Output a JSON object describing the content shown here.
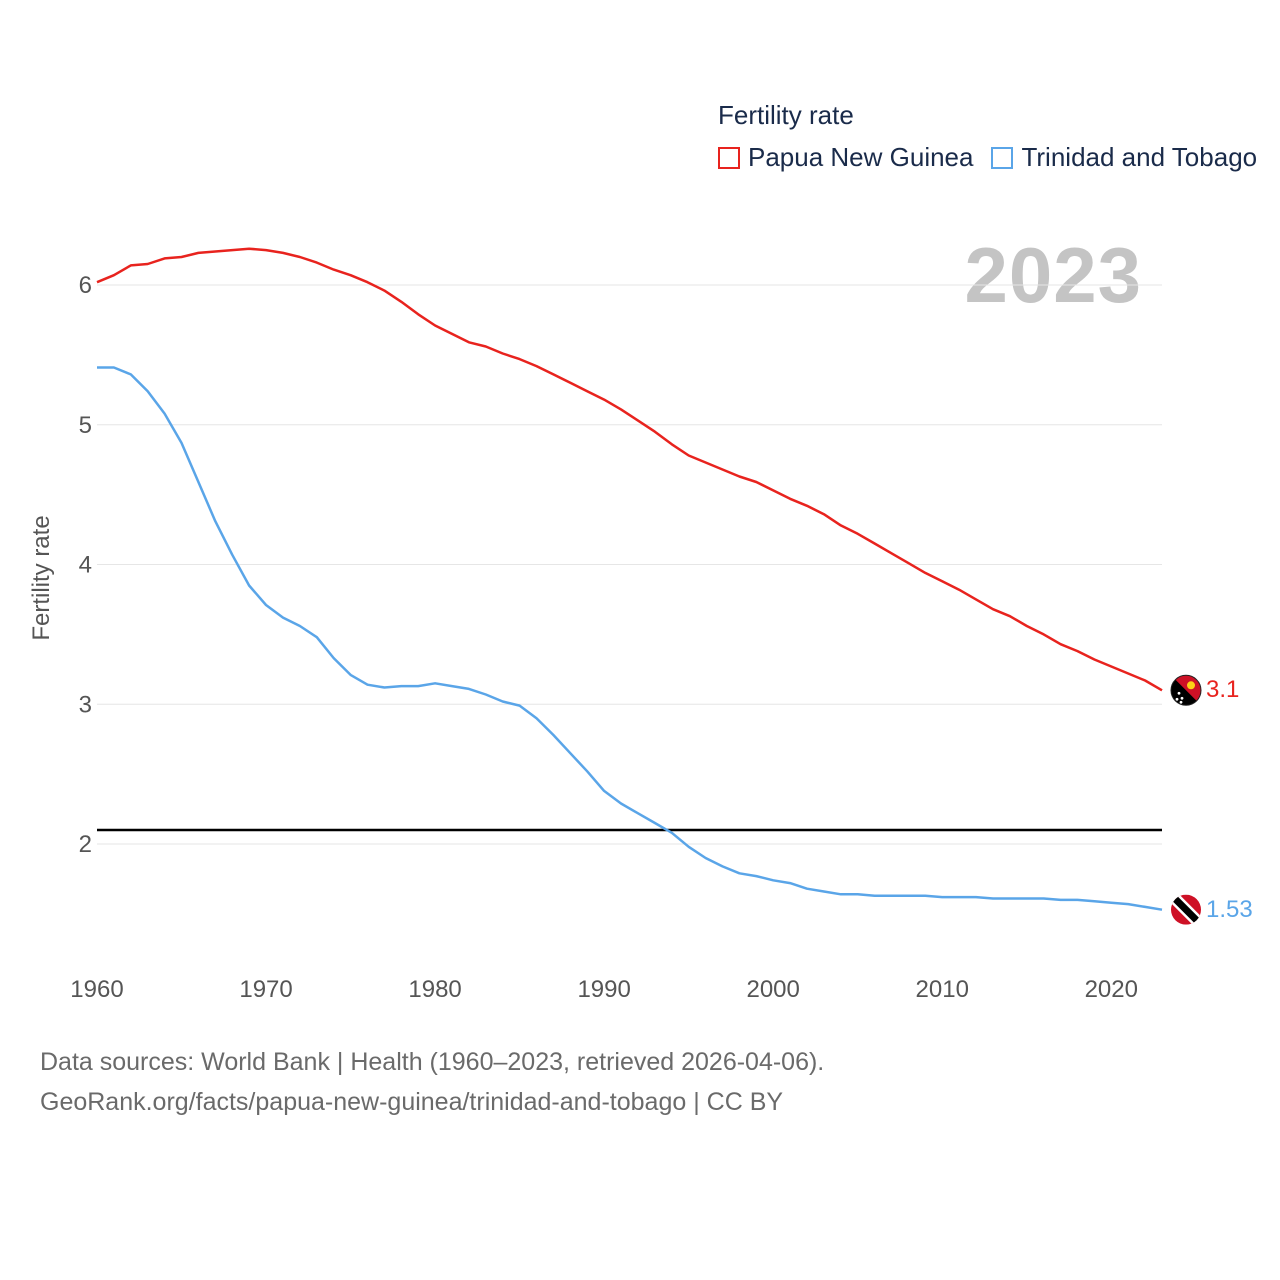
{
  "legend": {
    "title": "Fertility rate",
    "items": [
      {
        "label": "Papua New Guinea",
        "color": "#e8231e"
      },
      {
        "label": "Trinidad and Tobago",
        "color": "#5aa5e8"
      }
    ]
  },
  "year_label": "2023",
  "footer": {
    "line1": "Data sources: World Bank | Health (1960–2023, retrieved 2026-04-06).",
    "line2": "GeoRank.org/facts/papua-new-guinea/trinidad-and-tobago | CC BY"
  },
  "chart_data": {
    "type": "line",
    "title": "Fertility rate",
    "xlabel": "",
    "ylabel": "Fertility rate",
    "xlim": [
      1960,
      2023
    ],
    "ylim": [
      1.2,
      6.7
    ],
    "x_ticks": [
      1960,
      1970,
      1980,
      1990,
      2000,
      2010,
      2020
    ],
    "y_ticks": [
      2,
      3,
      4,
      5,
      6
    ],
    "grid": true,
    "reference_line": {
      "y": 2.1,
      "color": "#000000"
    },
    "x": [
      1960,
      1961,
      1962,
      1963,
      1964,
      1965,
      1966,
      1967,
      1968,
      1969,
      1970,
      1971,
      1972,
      1973,
      1974,
      1975,
      1976,
      1977,
      1978,
      1979,
      1980,
      1981,
      1982,
      1983,
      1984,
      1985,
      1986,
      1987,
      1988,
      1989,
      1990,
      1991,
      1992,
      1993,
      1994,
      1995,
      1996,
      1997,
      1998,
      1999,
      2000,
      2001,
      2002,
      2003,
      2004,
      2005,
      2006,
      2007,
      2008,
      2009,
      2010,
      2011,
      2012,
      2013,
      2014,
      2015,
      2016,
      2017,
      2018,
      2019,
      2020,
      2021,
      2022,
      2023
    ],
    "series": [
      {
        "name": "Papua New Guinea",
        "color": "#e8231e",
        "end_label": "3.1",
        "values": [
          6.02,
          6.07,
          6.14,
          6.15,
          6.19,
          6.2,
          6.23,
          6.24,
          6.25,
          6.26,
          6.25,
          6.23,
          6.2,
          6.16,
          6.11,
          6.07,
          6.02,
          5.96,
          5.88,
          5.79,
          5.71,
          5.65,
          5.59,
          5.56,
          5.51,
          5.47,
          5.42,
          5.36,
          5.3,
          5.24,
          5.18,
          5.11,
          5.03,
          4.95,
          4.86,
          4.78,
          4.73,
          4.68,
          4.63,
          4.59,
          4.53,
          4.47,
          4.42,
          4.36,
          4.28,
          4.22,
          4.15,
          4.08,
          4.01,
          3.94,
          3.88,
          3.82,
          3.75,
          3.68,
          3.63,
          3.56,
          3.5,
          3.43,
          3.38,
          3.32,
          3.27,
          3.22,
          3.17,
          3.1
        ]
      },
      {
        "name": "Trinidad and Tobago",
        "color": "#5aa5e8",
        "end_label": "1.53",
        "values": [
          5.41,
          5.41,
          5.36,
          5.24,
          5.08,
          4.87,
          4.59,
          4.31,
          4.07,
          3.85,
          3.71,
          3.62,
          3.56,
          3.48,
          3.33,
          3.21,
          3.14,
          3.12,
          3.13,
          3.13,
          3.15,
          3.13,
          3.11,
          3.07,
          3.02,
          2.99,
          2.9,
          2.78,
          2.65,
          2.52,
          2.38,
          2.29,
          2.22,
          2.15,
          2.08,
          1.98,
          1.9,
          1.84,
          1.79,
          1.77,
          1.74,
          1.72,
          1.68,
          1.66,
          1.64,
          1.64,
          1.63,
          1.63,
          1.63,
          1.63,
          1.62,
          1.62,
          1.62,
          1.61,
          1.61,
          1.61,
          1.61,
          1.6,
          1.6,
          1.59,
          1.58,
          1.57,
          1.55,
          1.53
        ]
      }
    ]
  }
}
